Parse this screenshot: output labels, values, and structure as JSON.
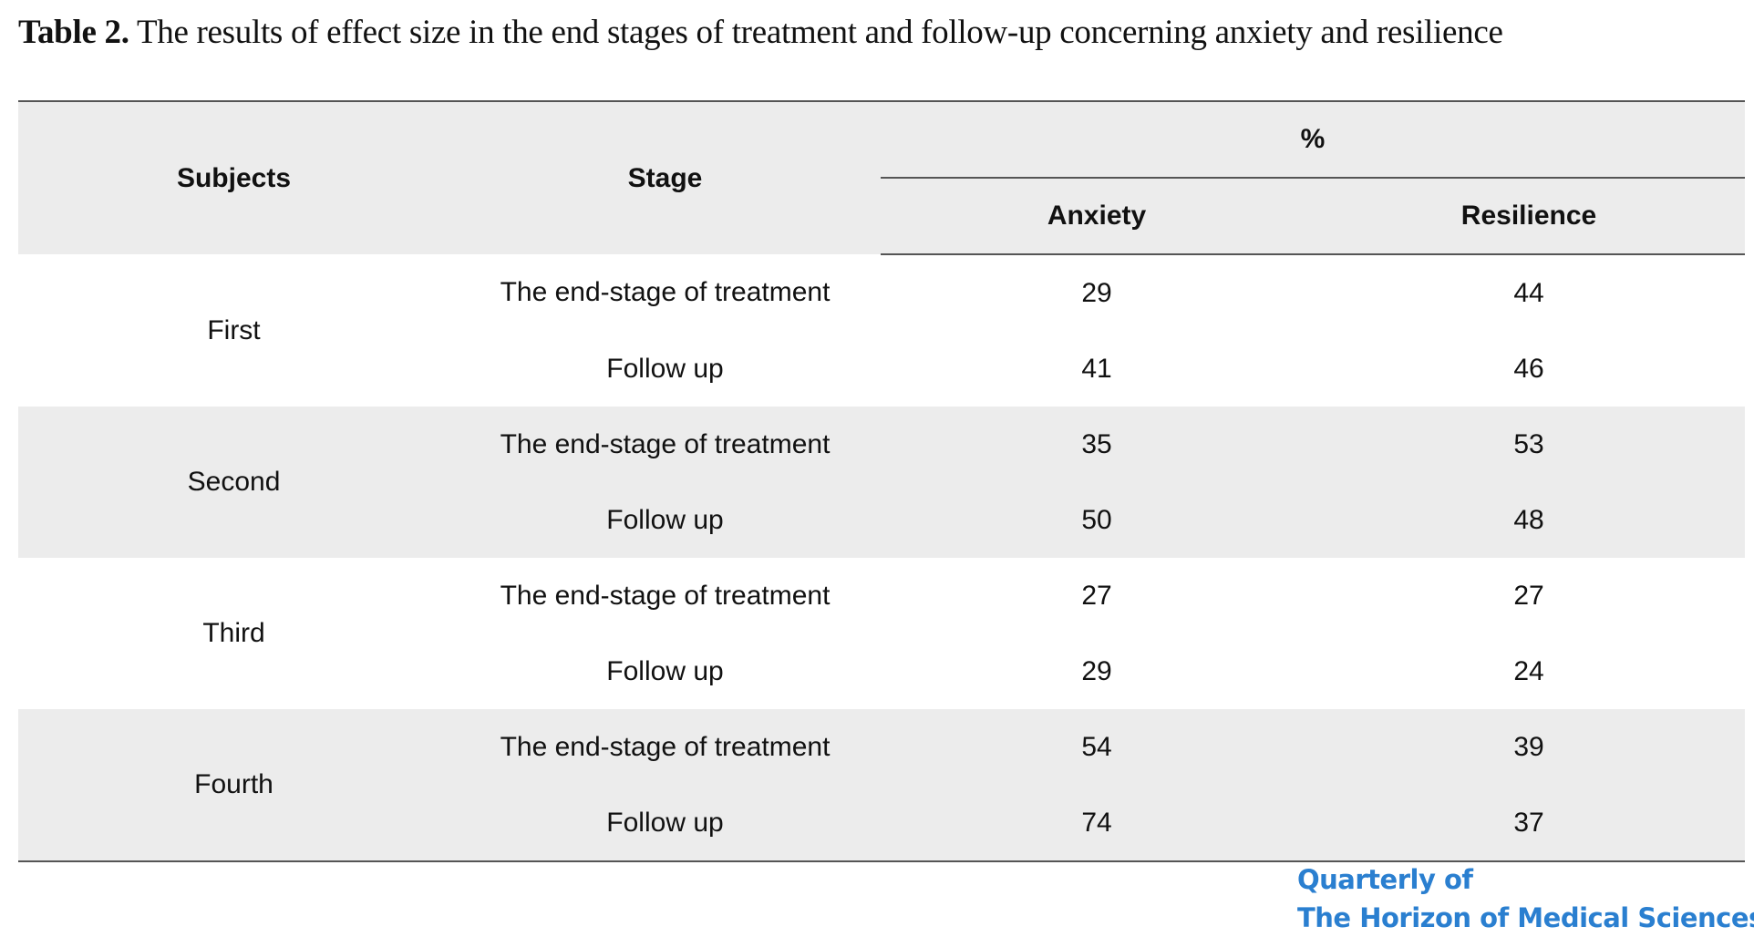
{
  "caption": {
    "label": "Table 2.",
    "text": " The results of effect size in the end stages of treatment and follow-up concerning anxiety and resilience"
  },
  "table": {
    "headers": {
      "subjects": "Subjects",
      "stage": "Stage",
      "group": "%",
      "anxiety": "Anxiety",
      "resilience": "Resilience"
    },
    "groups": [
      {
        "subject": "First",
        "rows": [
          {
            "stage": "The end-stage of treatment",
            "anxiety": "29",
            "resilience": "44"
          },
          {
            "stage": "Follow up",
            "anxiety": "41",
            "resilience": "46"
          }
        ]
      },
      {
        "subject": "Second",
        "rows": [
          {
            "stage": "The end-stage of treatment",
            "anxiety": "35",
            "resilience": "53"
          },
          {
            "stage": "Follow up",
            "anxiety": "50",
            "resilience": "48"
          }
        ]
      },
      {
        "subject": "Third",
        "rows": [
          {
            "stage": "The end-stage of treatment",
            "anxiety": "27",
            "resilience": "27"
          },
          {
            "stage": "Follow up",
            "anxiety": "29",
            "resilience": "24"
          }
        ]
      },
      {
        "subject": "Fourth",
        "rows": [
          {
            "stage": "The end-stage of treatment",
            "anxiety": "54",
            "resilience": "39"
          },
          {
            "stage": "Follow up",
            "anxiety": "74",
            "resilience": "37"
          }
        ]
      }
    ]
  },
  "watermark": {
    "line1": "Quarterly of",
    "line2": "The Horizon of Medical Sciences",
    "color": "#2a7fd0"
  }
}
